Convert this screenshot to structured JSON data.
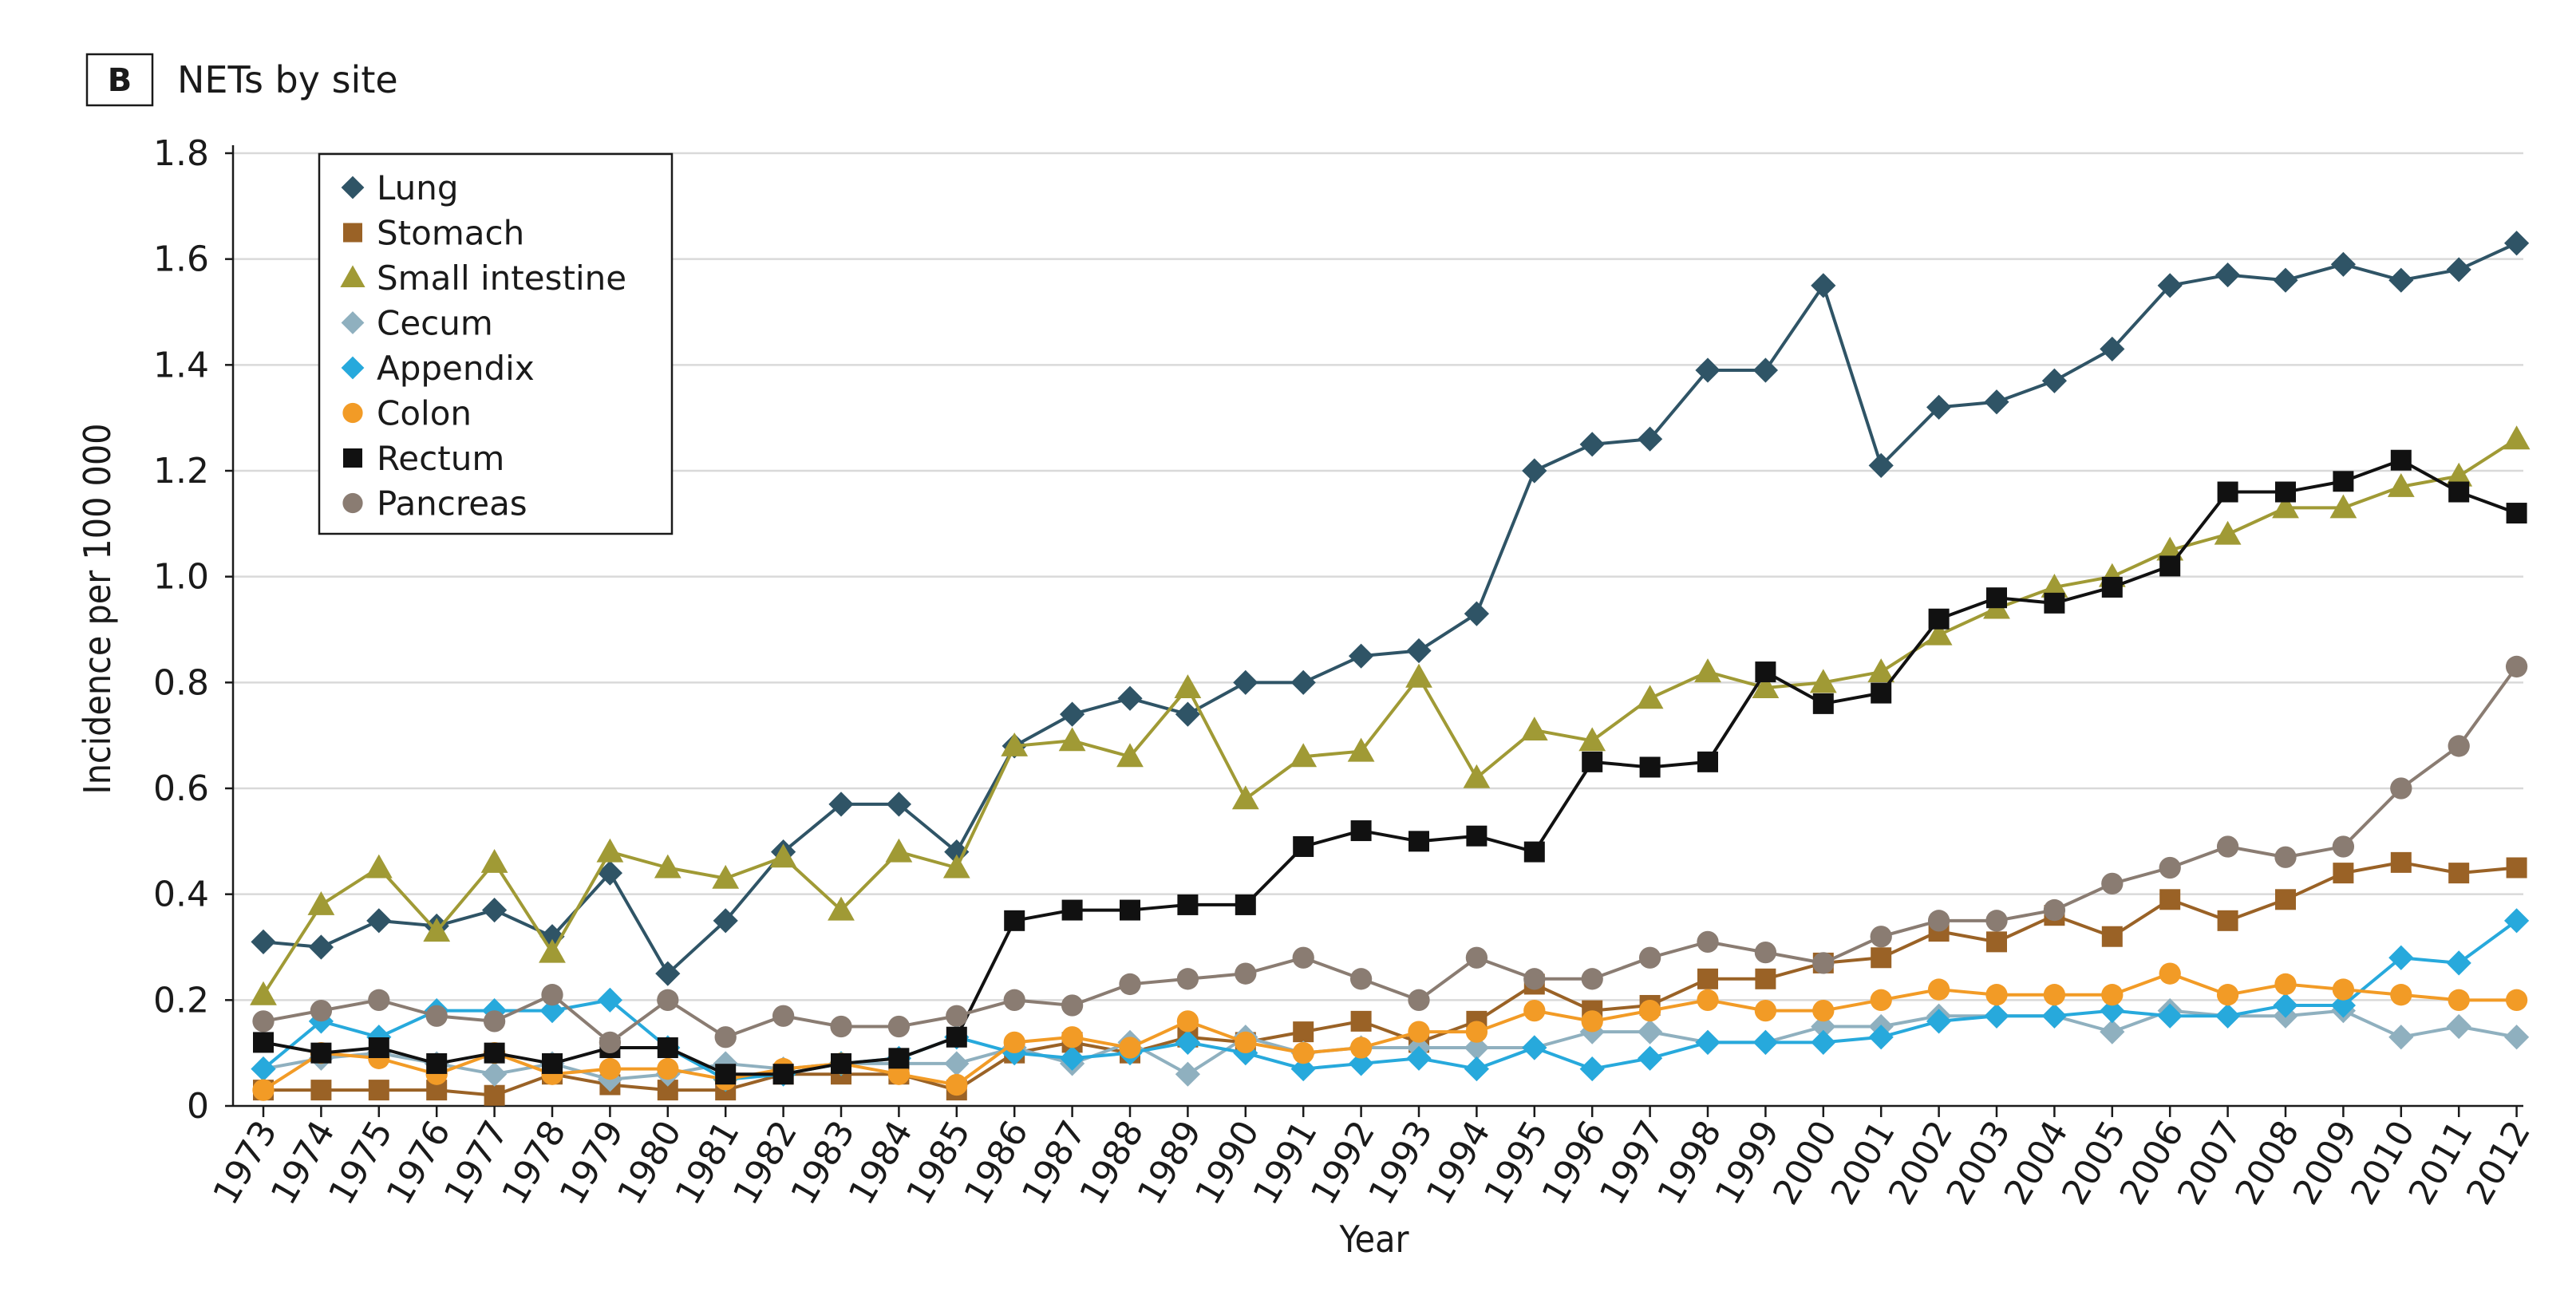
{
  "panel": {
    "letter": "B",
    "title": "NETs by site"
  },
  "chart_data": {
    "type": "line",
    "xlabel": "Year",
    "ylabel": "Incidence per 100 000",
    "ylim": [
      0,
      1.8
    ],
    "yticks": [
      "0",
      "0.2",
      "0.4",
      "0.6",
      "0.8",
      "1.0",
      "1.2",
      "1.4",
      "1.6",
      "1.8"
    ],
    "grid": "horizontal",
    "legend_position": "top-left",
    "categories": [
      "1973",
      "1974",
      "1975",
      "1976",
      "1977",
      "1978",
      "1979",
      "1980",
      "1981",
      "1982",
      "1983",
      "1984",
      "1985",
      "1986",
      "1987",
      "1988",
      "1989",
      "1990",
      "1991",
      "1992",
      "1993",
      "1994",
      "1995",
      "1996",
      "1997",
      "1998",
      "1999",
      "2000",
      "2001",
      "2002",
      "2003",
      "2004",
      "2005",
      "2006",
      "2007",
      "2008",
      "2009",
      "2010",
      "2011",
      "2012"
    ],
    "series": [
      {
        "name": "Lung",
        "color": "#2f5466",
        "marker": "diamond",
        "values": [
          0.31,
          0.3,
          0.35,
          0.34,
          0.37,
          0.32,
          0.44,
          0.25,
          0.35,
          0.48,
          0.57,
          0.57,
          0.48,
          0.68,
          0.74,
          0.77,
          0.74,
          0.8,
          0.8,
          0.85,
          0.86,
          0.93,
          1.2,
          1.25,
          1.26,
          1.39,
          1.39,
          1.55,
          1.21,
          1.32,
          1.33,
          1.37,
          1.43,
          1.55,
          1.57,
          1.56,
          1.59,
          1.56,
          1.58,
          1.63
        ]
      },
      {
        "name": "Stomach",
        "color": "#9a6226",
        "marker": "square",
        "values": [
          0.03,
          0.03,
          0.03,
          0.03,
          0.02,
          0.06,
          0.04,
          0.03,
          0.03,
          0.06,
          0.06,
          0.06,
          0.03,
          0.1,
          0.12,
          0.1,
          0.13,
          0.12,
          0.14,
          0.16,
          0.12,
          0.16,
          0.23,
          0.18,
          0.19,
          0.24,
          0.24,
          0.27,
          0.28,
          0.33,
          0.31,
          0.36,
          0.32,
          0.39,
          0.35,
          0.39,
          0.44,
          0.46,
          0.44,
          0.45
        ]
      },
      {
        "name": "Small intestine",
        "color": "#a09a35",
        "marker": "triangle",
        "values": [
          0.21,
          0.38,
          0.45,
          0.33,
          0.46,
          0.29,
          0.48,
          0.45,
          0.43,
          0.47,
          0.37,
          0.48,
          0.45,
          0.68,
          0.69,
          0.66,
          0.79,
          0.58,
          0.66,
          0.67,
          0.81,
          0.62,
          0.71,
          0.69,
          0.77,
          0.82,
          0.79,
          0.8,
          0.82,
          0.89,
          0.94,
          0.98,
          1.0,
          1.05,
          1.08,
          1.13,
          1.13,
          1.17,
          1.19,
          1.26
        ]
      },
      {
        "name": "Cecum",
        "color": "#8fb0bf",
        "marker": "diamond",
        "values": [
          0.07,
          0.09,
          0.1,
          0.08,
          0.06,
          0.08,
          0.05,
          0.06,
          0.08,
          0.07,
          0.08,
          0.08,
          0.08,
          0.11,
          0.08,
          0.12,
          0.06,
          0.13,
          0.1,
          0.11,
          0.11,
          0.11,
          0.11,
          0.14,
          0.14,
          0.12,
          0.12,
          0.15,
          0.15,
          0.17,
          0.17,
          0.17,
          0.14,
          0.18,
          0.17,
          0.17,
          0.18,
          0.13,
          0.15,
          0.13
        ]
      },
      {
        "name": "Appendix",
        "color": "#27a9dc",
        "marker": "diamond",
        "values": [
          0.07,
          0.16,
          0.13,
          0.18,
          0.18,
          0.18,
          0.2,
          0.11,
          0.05,
          0.06,
          0.08,
          0.09,
          0.13,
          0.1,
          0.09,
          0.1,
          0.12,
          0.1,
          0.07,
          0.08,
          0.09,
          0.07,
          0.11,
          0.07,
          0.09,
          0.12,
          0.12,
          0.12,
          0.13,
          0.16,
          0.17,
          0.17,
          0.18,
          0.17,
          0.17,
          0.19,
          0.19,
          0.28,
          0.27,
          0.35
        ]
      },
      {
        "name": "Colon",
        "color": "#f29b26",
        "marker": "circle",
        "values": [
          0.03,
          0.1,
          0.09,
          0.06,
          0.1,
          0.06,
          0.07,
          0.07,
          0.05,
          0.07,
          0.08,
          0.06,
          0.04,
          0.12,
          0.13,
          0.11,
          0.16,
          0.12,
          0.1,
          0.11,
          0.14,
          0.14,
          0.18,
          0.16,
          0.18,
          0.2,
          0.18,
          0.18,
          0.2,
          0.22,
          0.21,
          0.21,
          0.21,
          0.25,
          0.21,
          0.23,
          0.22,
          0.21,
          0.2,
          0.2
        ]
      },
      {
        "name": "Rectum",
        "color": "#111111",
        "marker": "square",
        "values": [
          0.12,
          0.1,
          0.11,
          0.08,
          0.1,
          0.08,
          0.11,
          0.11,
          0.06,
          0.06,
          0.08,
          0.09,
          0.13,
          0.35,
          0.37,
          0.37,
          0.38,
          0.38,
          0.49,
          0.52,
          0.5,
          0.51,
          0.48,
          0.65,
          0.64,
          0.65,
          0.82,
          0.76,
          0.78,
          0.92,
          0.96,
          0.95,
          0.98,
          1.02,
          1.16,
          1.16,
          1.18,
          1.22,
          1.16,
          1.12
        ]
      },
      {
        "name": "Pancreas",
        "color": "#8a7c72",
        "marker": "circle",
        "values": [
          0.16,
          0.18,
          0.2,
          0.17,
          0.16,
          0.21,
          0.12,
          0.2,
          0.13,
          0.17,
          0.15,
          0.15,
          0.17,
          0.2,
          0.19,
          0.23,
          0.24,
          0.25,
          0.28,
          0.24,
          0.2,
          0.28,
          0.24,
          0.24,
          0.28,
          0.31,
          0.29,
          0.27,
          0.32,
          0.35,
          0.35,
          0.37,
          0.42,
          0.45,
          0.49,
          0.47,
          0.49,
          0.6,
          0.68,
          0.83
        ]
      }
    ]
  }
}
